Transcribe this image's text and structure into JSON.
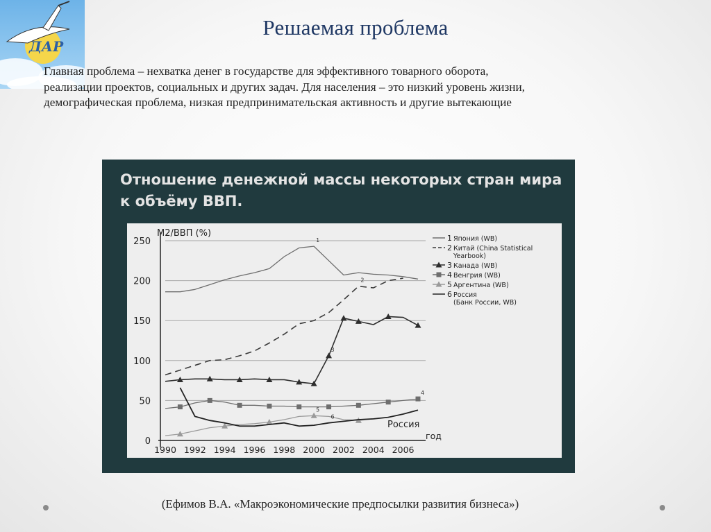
{
  "slide": {
    "title": "Решаемая проблема",
    "text_lines": [
      "Главная проблема – нехватка денег в государстве для эффективного товарного оборота,",
      "реализации проектов, социальных и других задач. Для населения – это низкий уровень жизни,",
      "демографическая проблема, низкая предпринимательская активность и другие вытекающие"
    ],
    "citation": "(Ефимов В.А. «Макроэкономические предпосылки развития бизнеса»)",
    "logo_text": "ДАР",
    "logo_icon": "stork-logo-icon"
  },
  "chart_data": {
    "type": "line",
    "title_lines": [
      "Отношение денежной массы некоторых стран мира",
      "к объёму ВВП."
    ],
    "ylabel": "М2/ВВП (%)",
    "xlabel": "год",
    "xlim": [
      1990,
      2007
    ],
    "ylim": [
      0,
      250
    ],
    "x_ticks": [
      1990,
      1992,
      1994,
      1996,
      1998,
      2000,
      2002,
      2004,
      2006
    ],
    "y_ticks": [
      0,
      50,
      100,
      150,
      200,
      250
    ],
    "grid": "horizontal",
    "legend_position": "top-right",
    "series": [
      {
        "name": "Япония (WB)",
        "num": "1",
        "style": "solid",
        "marker": "none",
        "x": [
          1990,
          1991,
          1992,
          1993,
          1994,
          1995,
          1996,
          1997,
          1998,
          1999,
          2000,
          2001,
          2002,
          2003,
          2004,
          2005,
          2006,
          2007
        ],
        "y": [
          186,
          186,
          189,
          195,
          201,
          206,
          210,
          215,
          230,
          241,
          243,
          225,
          207,
          210,
          208,
          207,
          205,
          202
        ]
      },
      {
        "name": "Китай (China Statistical Yearbook)",
        "num": "2",
        "style": "dashed",
        "marker": "none",
        "x": [
          1990,
          1991,
          1992,
          1993,
          1994,
          1995,
          1996,
          1997,
          1998,
          1999,
          2000,
          2001,
          2002,
          2003,
          2004,
          2005,
          2006
        ],
        "y": [
          82,
          88,
          94,
          100,
          101,
          106,
          112,
          122,
          133,
          146,
          150,
          160,
          176,
          193,
          191,
          200,
          203
        ]
      },
      {
        "name": "Канада (WB)",
        "num": "3",
        "style": "solid",
        "marker": "triangle",
        "x": [
          1990,
          1991,
          1992,
          1993,
          1994,
          1995,
          1996,
          1997,
          1998,
          1999,
          2000,
          2001,
          2002,
          2003,
          2004,
          2005,
          2006,
          2007
        ],
        "y": [
          74,
          76,
          77,
          77,
          76,
          76,
          77,
          76,
          76,
          73,
          71,
          106,
          153,
          149,
          145,
          155,
          154,
          144
        ]
      },
      {
        "name": "Венгрия (WB)",
        "num": "4",
        "style": "solid",
        "marker": "square",
        "x": [
          1990,
          1991,
          1992,
          1993,
          1994,
          1995,
          1996,
          1997,
          1998,
          1999,
          2000,
          2001,
          2002,
          2003,
          2004,
          2005,
          2006,
          2007
        ],
        "y": [
          40,
          42,
          47,
          50,
          48,
          44,
          44,
          43,
          43,
          42,
          42,
          42,
          43,
          44,
          46,
          48,
          50,
          52
        ]
      },
      {
        "name": "Аргентина (WB)",
        "num": "5",
        "style": "solid",
        "marker": "triangle",
        "x": [
          1990,
          1991,
          1992,
          1993,
          1994,
          1995,
          1996,
          1997,
          1998,
          1999,
          2000,
          2001,
          2002,
          2003,
          2004
        ],
        "y": [
          6,
          8,
          12,
          16,
          18,
          20,
          21,
          23,
          26,
          30,
          31,
          30,
          26,
          25,
          27
        ]
      },
      {
        "name": "Россия (Банк России, WB)",
        "num": "6",
        "style": "solid",
        "marker": "none",
        "x": [
          1991,
          1992,
          1993,
          1994,
          1995,
          1996,
          1997,
          1998,
          1999,
          2000,
          2001,
          2002,
          2003,
          2004,
          2005,
          2006,
          2007
        ],
        "y": [
          66,
          30,
          25,
          22,
          18,
          18,
          20,
          22,
          18,
          19,
          22,
          24,
          26,
          27,
          29,
          33,
          38
        ]
      }
    ],
    "series_annotations": [
      {
        "text": "Россия",
        "series": "6"
      }
    ]
  }
}
